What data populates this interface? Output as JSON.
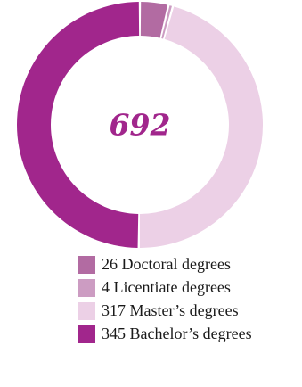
{
  "chart_data": {
    "type": "pie",
    "donut": true,
    "center_label": "692",
    "slices": [
      {
        "count": 26,
        "label": "26 Doctoral degrees",
        "color": "#b26ba2"
      },
      {
        "count": 4,
        "label": "4 Licentiate degrees",
        "color": "#cc9cc2"
      },
      {
        "count": 317,
        "label": "317 Master’s degrees",
        "color": "#ecd0e6"
      },
      {
        "count": 345,
        "label": "345 Bachelor’s degrees",
        "color": "#a1268c"
      }
    ],
    "legend_position": "bottom",
    "center_color": "#a1268c"
  }
}
